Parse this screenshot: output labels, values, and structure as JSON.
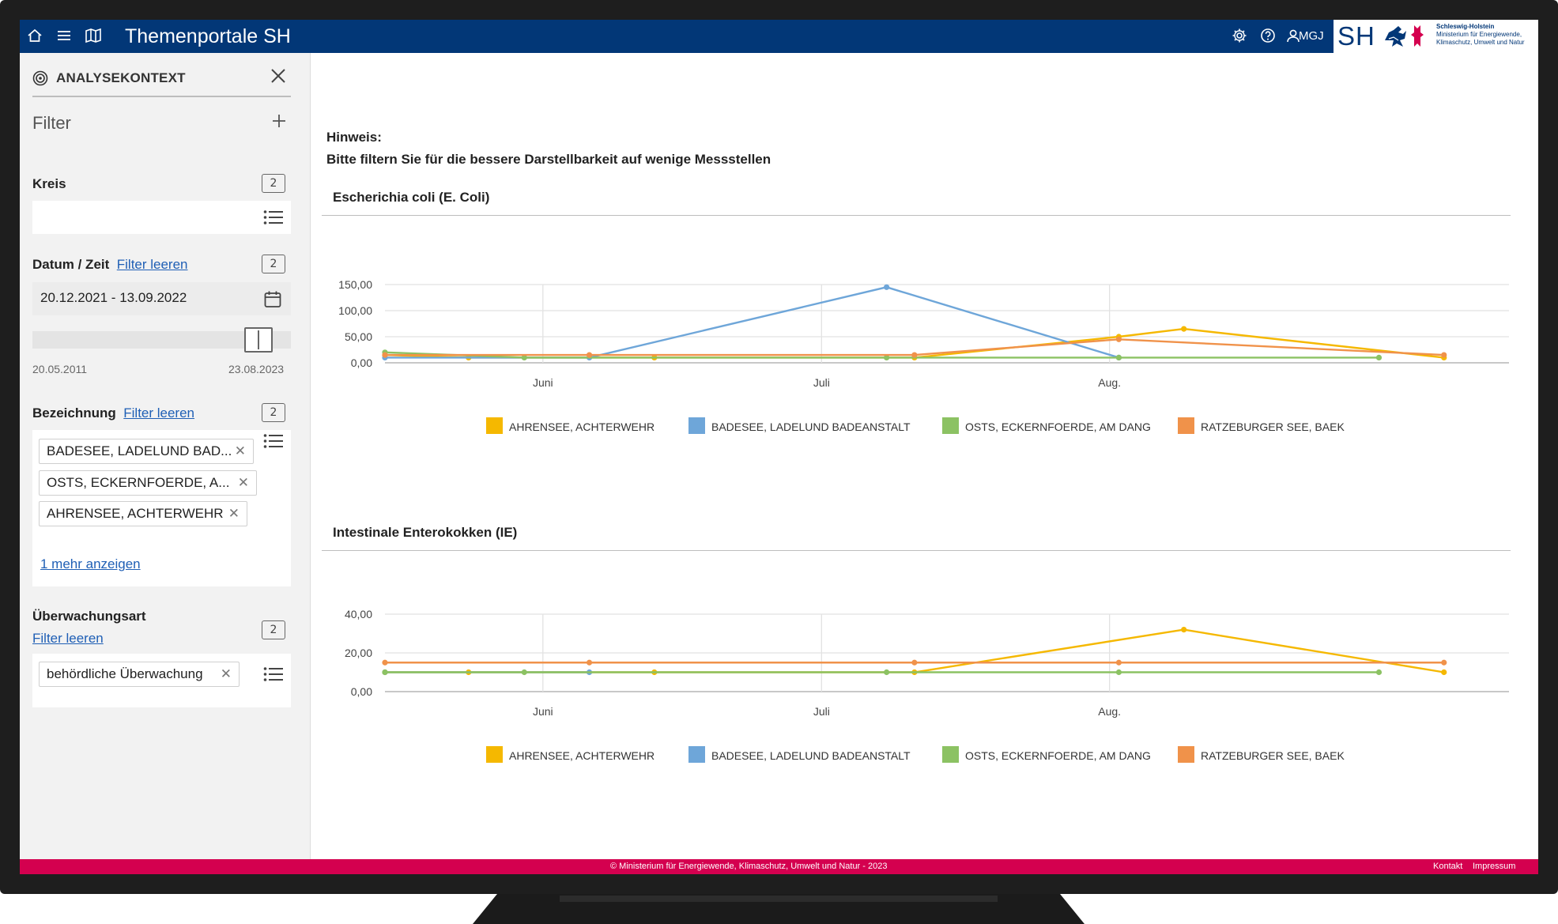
{
  "header": {
    "title": "Themenportale SH",
    "user": "MGJ",
    "logo_mark": "SH",
    "logo_state": "Schleswig-Holstein",
    "logo_ministry_1": "Ministerium für Energiewende,",
    "logo_ministry_2": "Klimaschutz, Umwelt und Natur",
    "icons": [
      "home-icon",
      "menu-icon",
      "map-icon",
      "gear-icon",
      "help-icon",
      "user-icon"
    ]
  },
  "sidebar": {
    "context_title": "ANALYSEKONTEXT",
    "filter_title": "Filter",
    "kreis": {
      "label": "Kreis",
      "count": "2"
    },
    "datum": {
      "label": "Datum / Zeit",
      "clear": "Filter leeren",
      "count": "2",
      "value": "20.12.2021 - 13.09.2022",
      "range_min": "20.05.2011",
      "range_max": "23.08.2023"
    },
    "bezeichnung": {
      "label": "Bezeichnung",
      "clear": "Filter leeren",
      "count": "2",
      "chips": [
        "BADESEE, LADELUND BAD...",
        "OSTS, ECKERNFOERDE, A...",
        "AHRENSEE, ACHTERWEHR"
      ],
      "more": "1 mehr anzeigen"
    },
    "ueberwachung": {
      "label": "Überwachungsart",
      "clear": "Filter leeren",
      "count": "2",
      "chips": [
        "behördliche Überwachung"
      ]
    }
  },
  "main": {
    "hint_title": "Hinweis:",
    "hint_text": "Bitte filtern Sie für die bessere Darstellbarkeit auf wenige Messstellen"
  },
  "chart_data": [
    {
      "type": "line",
      "title": "Escherichia coli (E. Coli)",
      "x_ticks": [
        "Juni",
        "Juli",
        "Aug."
      ],
      "y_ticks": [
        "150,00",
        "100,00",
        "50,00",
        "0,00"
      ],
      "ylim": [
        0,
        150
      ],
      "x_range": [
        "2022-05-15",
        "2022-09-13"
      ],
      "grid": true,
      "legend": "bottom",
      "series": [
        {
          "name": "AHRENSEE, ACHTERWEHR",
          "color": "#f5b800",
          "x": [
            "2022-05-15",
            "2022-05-24",
            "2022-06-13",
            "2022-07-11",
            "2022-08-02",
            "2022-08-09",
            "2022-09-06"
          ],
          "values": [
            15,
            10,
            10,
            10,
            50,
            65,
            10
          ]
        },
        {
          "name": "BADESEE, LADELUND BADEANSTALT",
          "color": "#6ea6d9",
          "x": [
            "2022-05-15",
            "2022-06-06",
            "2022-07-08",
            "2022-08-02"
          ],
          "values": [
            10,
            10,
            145,
            10
          ]
        },
        {
          "name": "OSTS, ECKERNFOERDE, AM DANG",
          "color": "#8cc263",
          "x": [
            "2022-05-15",
            "2022-05-30",
            "2022-07-08",
            "2022-08-02",
            "2022-08-30"
          ],
          "values": [
            20,
            10,
            10,
            10,
            10
          ]
        },
        {
          "name": "RATZEBURGER SEE, BAEK",
          "color": "#f0924a",
          "x": [
            "2022-05-15",
            "2022-06-06",
            "2022-07-11",
            "2022-08-02",
            "2022-09-06"
          ],
          "values": [
            15,
            15,
            15,
            45,
            15
          ]
        }
      ]
    },
    {
      "type": "line",
      "title": "Intestinale Enterokokken (IE)",
      "x_ticks": [
        "Juni",
        "Juli",
        "Aug."
      ],
      "y_ticks": [
        "40,00",
        "20,00",
        "0,00"
      ],
      "ylim": [
        0,
        40
      ],
      "x_range": [
        "2022-05-15",
        "2022-09-13"
      ],
      "grid": true,
      "legend": "bottom",
      "series": [
        {
          "name": "AHRENSEE, ACHTERWEHR",
          "color": "#f5b800",
          "x": [
            "2022-05-15",
            "2022-05-24",
            "2022-06-13",
            "2022-07-11",
            "2022-08-09",
            "2022-09-06"
          ],
          "values": [
            10,
            10,
            10,
            10,
            32,
            10
          ]
        },
        {
          "name": "BADESEE, LADELUND BADEANSTALT",
          "color": "#6ea6d9",
          "x": [
            "2022-05-15",
            "2022-06-06"
          ],
          "values": [
            10,
            10
          ]
        },
        {
          "name": "OSTS, ECKERNFOERDE, AM DANG",
          "color": "#8cc263",
          "x": [
            "2022-05-15",
            "2022-05-30",
            "2022-07-08",
            "2022-08-02",
            "2022-08-30"
          ],
          "values": [
            10,
            10,
            10,
            10,
            10
          ]
        },
        {
          "name": "RATZEBURGER SEE, BAEK",
          "color": "#f0924a",
          "x": [
            "2022-05-15",
            "2022-06-06",
            "2022-07-11",
            "2022-08-02",
            "2022-09-06"
          ],
          "values": [
            15,
            15,
            15,
            15,
            15
          ]
        }
      ]
    }
  ],
  "footer": {
    "copyright": "© Ministerium für Energiewende, Klimaschutz, Umwelt und Natur - 2023",
    "kontakt": "Kontakt",
    "impressum": "Impressum"
  }
}
